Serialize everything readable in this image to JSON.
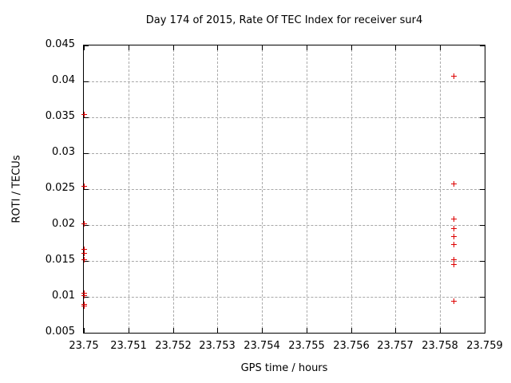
{
  "chart_data": {
    "type": "scatter",
    "title": "Day 174 of 2015, Rate Of TEC Index for receiver sur4",
    "xlabel": "GPS time / hours",
    "ylabel": "ROTI / TECUs",
    "xlim": [
      23.75,
      23.759
    ],
    "ylim": [
      0.005,
      0.045
    ],
    "grid": true,
    "legend": "none",
    "marker": "plus",
    "marker_color": "#dd0000",
    "grid_color": "#a8a8a8",
    "axis_color": "#000000",
    "xticks": [
      {
        "value": 23.75,
        "label": "23.75"
      },
      {
        "value": 23.751,
        "label": "23.751"
      },
      {
        "value": 23.752,
        "label": "23.752"
      },
      {
        "value": 23.753,
        "label": "23.753"
      },
      {
        "value": 23.754,
        "label": "23.754"
      },
      {
        "value": 23.755,
        "label": "23.755"
      },
      {
        "value": 23.756,
        "label": "23.756"
      },
      {
        "value": 23.757,
        "label": "23.757"
      },
      {
        "value": 23.758,
        "label": "23.758"
      },
      {
        "value": 23.759,
        "label": "23.759"
      }
    ],
    "yticks": [
      {
        "value": 0.005,
        "label": "0.005"
      },
      {
        "value": 0.01,
        "label": "0.01"
      },
      {
        "value": 0.015,
        "label": "0.015"
      },
      {
        "value": 0.02,
        "label": "0.02"
      },
      {
        "value": 0.025,
        "label": "0.025"
      },
      {
        "value": 0.03,
        "label": "0.03"
      },
      {
        "value": 0.035,
        "label": "0.035"
      },
      {
        "value": 0.04,
        "label": "0.04"
      },
      {
        "value": 0.045,
        "label": "0.045"
      }
    ],
    "series": [
      {
        "name": "ROTI",
        "points": [
          [
            23.75,
            0.0355
          ],
          [
            23.75,
            0.0255
          ],
          [
            23.75,
            0.0202
          ],
          [
            23.75,
            0.0167
          ],
          [
            23.75,
            0.0161
          ],
          [
            23.75,
            0.0152
          ],
          [
            23.75,
            0.0106
          ],
          [
            23.75,
            0.0102
          ],
          [
            23.75,
            0.009
          ],
          [
            23.75,
            0.0088
          ],
          [
            23.7583,
            0.0408
          ],
          [
            23.7583,
            0.0258
          ],
          [
            23.7583,
            0.0209
          ],
          [
            23.7583,
            0.0196
          ],
          [
            23.7583,
            0.0184
          ],
          [
            23.7583,
            0.0173
          ],
          [
            23.7583,
            0.0152
          ],
          [
            23.7583,
            0.0146
          ],
          [
            23.7583,
            0.0095
          ]
        ]
      }
    ]
  }
}
